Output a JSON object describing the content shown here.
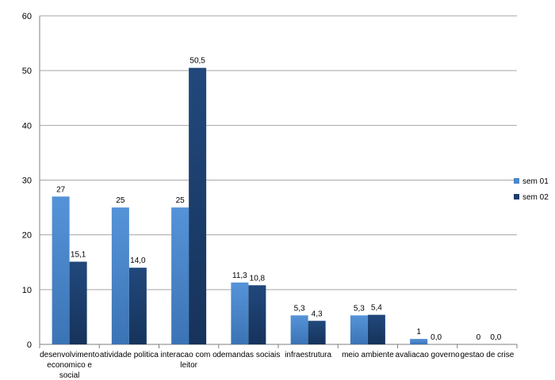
{
  "chart_data": {
    "type": "bar",
    "categories": [
      "desenvolvimento economico e social",
      "atividade politica",
      "interacao com o leitor",
      "demandas sociais",
      "infraestrutura",
      "meio ambiente",
      "avaliacao governo",
      "gestao de crise"
    ],
    "category_lines": [
      [
        "desenvolvimento",
        "economico e",
        "social"
      ],
      [
        "atividade politica"
      ],
      [
        "interacao com o",
        "leitor"
      ],
      [
        "demandas sociais"
      ],
      [
        "infraestrutura"
      ],
      [
        "meio ambiente"
      ],
      [
        "avaliacao governo"
      ],
      [
        "gestao de crise"
      ]
    ],
    "series": [
      {
        "name": "sem 01",
        "values": [
          27,
          25,
          25,
          11.3,
          5.3,
          5.3,
          1,
          0
        ],
        "labels": [
          "27",
          "25",
          "25",
          "11,3",
          "5,3",
          "5,3",
          "1",
          "0"
        ],
        "color": "#4a86c8"
      },
      {
        "name": "sem 02",
        "values": [
          15.1,
          14.0,
          50.5,
          10.8,
          4.3,
          5.4,
          0.0,
          0.0
        ],
        "labels": [
          "15,1",
          "14,0",
          "50,5",
          "10,8",
          "4,3",
          "5,4",
          "0,0",
          "0,0"
        ],
        "color": "#1c3d6b"
      }
    ],
    "ylim": [
      0,
      60
    ],
    "yticks": [
      0,
      10,
      20,
      30,
      40,
      50,
      60
    ],
    "grid": true,
    "legend": "right",
    "title": "",
    "xlabel": "",
    "ylabel": ""
  }
}
